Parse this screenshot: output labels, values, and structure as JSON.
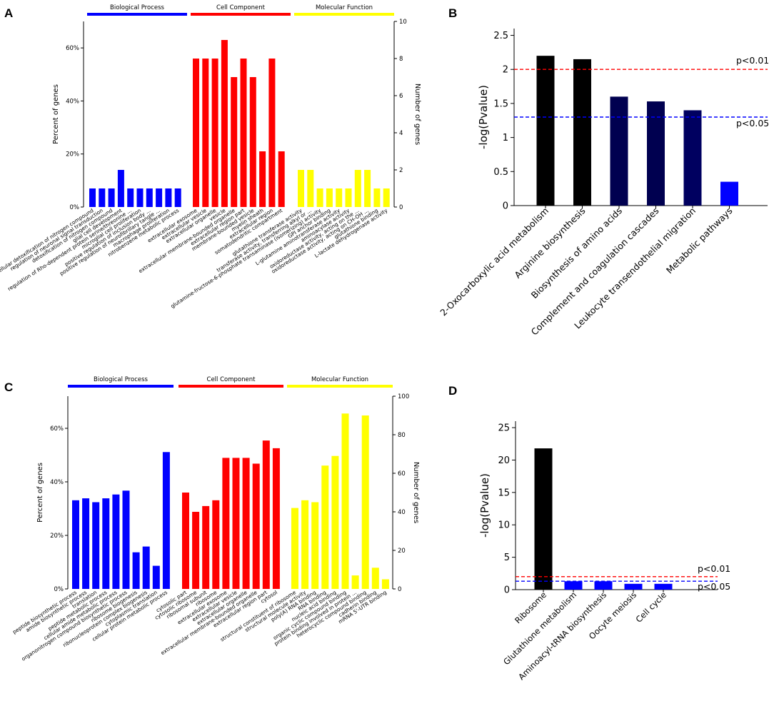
{
  "chart_data": [
    {
      "panel": "A",
      "type": "bar",
      "ylabel": "Percent of genes",
      "y2label": "Number of genes",
      "ylim": [
        0,
        0.7
      ],
      "y2lim": [
        0,
        10
      ],
      "yticks": [
        "0%",
        "20%",
        "40%",
        "60%"
      ],
      "y2ticks": [
        "0",
        "2",
        "4",
        "6",
        "8",
        "10"
      ],
      "groups": [
        {
          "name": "Biological Process",
          "color": "#0000ff",
          "categories": [
            "cellular detoxification of nitrogen compound",
            "regulation of neuronal signal transduction",
            "detoxification of nitrogen compound",
            "glial cell development",
            "regulation of Rho-dependent protein serine/threonine ...",
            "microglial cell proliferation",
            "positive regulation of inclusion body ...",
            "positive regulation of neurofibrillary tangle ...",
            "macrophage proliferation",
            "nitrobenzene metabolic process"
          ],
          "values": [
            1,
            1,
            1,
            2,
            1,
            1,
            1,
            1,
            1,
            1
          ]
        },
        {
          "name": "Cell Component",
          "color": "#ff0000",
          "categories": [
            "extracellular exosome",
            "extracellular vesicle",
            "extracellular organelle",
            "vesicle",
            "extracellular membrane-bounded organelle",
            "extracellular region part",
            "membrane-bounded vesicle",
            "myelin sheath",
            "extracellular region",
            "somatodendritic compartment"
          ],
          "values": [
            8,
            8,
            8,
            9,
            7,
            8,
            7,
            3,
            8,
            3
          ]
        },
        {
          "name": "Molecular Function",
          "color": "#ffff00",
          "categories": [
            "glutathione transferase activity",
            "transferase activity, transferring alkyl or ...",
            "glutamine-fructose-6-phosphate transaminase (isomerizing) activity",
            "GPI anchor binding",
            "L-glutamine aminotransferase activity",
            "aminoacylase activity",
            "oxidoreductase activity, acting on the ...",
            "oxidoreductase activity, acting on CH-OH ...",
            "glutathione binding",
            "L-lactate dehydrogenase activity"
          ],
          "values": [
            2,
            2,
            1,
            1,
            1,
            1,
            2,
            2,
            1,
            1
          ]
        }
      ]
    },
    {
      "panel": "B",
      "type": "bar",
      "ylabel": "-log(Pvalue)",
      "ylim": [
        0,
        2.6
      ],
      "yticks": [
        "0",
        "0.5",
        "1",
        "1.5",
        "2",
        "2.5"
      ],
      "categories": [
        "2-Oxocarboxylic acid metabolism",
        "Arginine biosynthesis",
        "Biosynthesis of amino acids",
        "Complement and coagulation cascades",
        "Leukocyte transendothelial migration",
        "Metabolic pathways"
      ],
      "values": [
        2.2,
        2.15,
        1.6,
        1.53,
        1.4,
        0.35
      ],
      "colors": [
        "#000000",
        "#000000",
        "#000050",
        "#000050",
        "#000060",
        "#0000ff"
      ],
      "thresholds": [
        {
          "label": "p<0.01",
          "value": 2.0,
          "color": "#ff0000"
        },
        {
          "label": "p<0.05",
          "value": 1.3,
          "color": "#0000ff"
        }
      ]
    },
    {
      "panel": "C",
      "type": "bar",
      "ylabel": "Percent of genes",
      "y2label": "Number of genes",
      "ylim": [
        0,
        0.72
      ],
      "y2lim": [
        0,
        100
      ],
      "yticks": [
        "0%",
        "20%",
        "40%",
        "60%"
      ],
      "y2ticks": [
        "0",
        "20",
        "40",
        "60",
        "80",
        "100"
      ],
      "groups": [
        {
          "name": "Biological Process",
          "color": "#0000ff",
          "categories": [
            "peptide biosynthetic process",
            "amide biosynthetic process",
            "translation",
            "peptide metabolic process",
            "cellular amide metabolic process",
            "organonitrogen compound biosynthetic process",
            "ribosome biogenesis",
            "ribonucleoprotein complex biogenesis",
            "cytoplasmic translation",
            "cellular protein metabolic process"
          ],
          "values": [
            46,
            47,
            45,
            47,
            49,
            51,
            19,
            22,
            12,
            71
          ]
        },
        {
          "name": "Cell Component",
          "color": "#ff0000",
          "categories": [
            "cytosolic part",
            "cytosolic ribosome",
            "ribosomal subunit",
            "ribosome",
            "extracellular exosome",
            "extracellular vesicle",
            "extracellular organelle",
            "extracellular membrane-bounded organelle",
            "extracellular region part",
            "cytosol"
          ],
          "values": [
            50,
            40,
            43,
            46,
            68,
            68,
            68,
            65,
            77,
            73
          ]
        },
        {
          "name": "Molecular Function",
          "color": "#ffff00",
          "categories": [
            "structural constituent of ribosome",
            "structural molecule activity",
            "poly(A) RNA binding",
            "RNA binding",
            "nucleic acid binding",
            "organic cyclic compound binding",
            "protein binding involved in protein ...",
            "heterocyclic compound binding",
            "cadherin binding",
            "mRNA 5'-UTR binding"
          ],
          "values": [
            42,
            46,
            45,
            64,
            69,
            91,
            7,
            90,
            11,
            5
          ]
        }
      ]
    },
    {
      "panel": "D",
      "type": "bar",
      "ylabel": "-log(Pvalue)",
      "ylim": [
        0,
        26
      ],
      "yticks": [
        "0",
        "5",
        "10",
        "15",
        "20",
        "25"
      ],
      "categories": [
        "Ribosome",
        "Glutathione metabolism",
        "Aminoacyl-tRNA biosynthesis",
        "Oocyte meiosis",
        "Cell cycle"
      ],
      "values": [
        21.8,
        1.3,
        1.3,
        0.9,
        0.9
      ],
      "colors": [
        "#000000",
        "#0000ff",
        "#0000ff",
        "#0000ff",
        "#0000ff"
      ],
      "thresholds": [
        {
          "label": "p<0.01",
          "value": 2.0,
          "color": "#ff0000"
        },
        {
          "label": "p<0.05",
          "value": 1.3,
          "color": "#0000ff"
        }
      ]
    }
  ]
}
